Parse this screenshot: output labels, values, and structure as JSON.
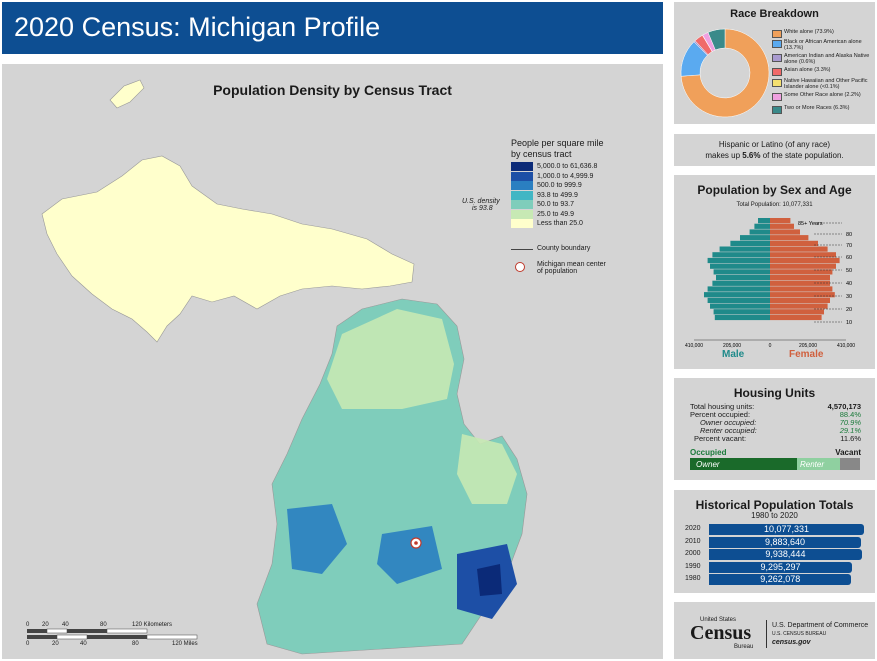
{
  "header": {
    "title": "2020 Census: Michigan Profile"
  },
  "map": {
    "title": "Population Density by Census Tract",
    "legend_title_1": "People per square mile",
    "legend_title_2": "by census tract",
    "classes": [
      {
        "label": "5,000.0 to 61,636.8",
        "color": "#0b2a78"
      },
      {
        "label": "1,000.0 to 4,999.9",
        "color": "#1d4fa6"
      },
      {
        "label": "500.0 to 999.9",
        "color": "#2a7fc1"
      },
      {
        "label": "93.8 to 499.9",
        "color": "#41b6c4"
      },
      {
        "label": "50.0 to 93.7",
        "color": "#7fcdbb"
      },
      {
        "label": "25.0 to 49.9",
        "color": "#c7e9b4"
      },
      {
        "label": "Less than 25.0",
        "color": "#ffffcc"
      }
    ],
    "us_density_line1": "U.S. density",
    "us_density_line2": "is 93.8",
    "county_boundary": "County boundary",
    "mean_center_1": "Michigan mean center",
    "mean_center_2": "of population",
    "scale_km": [
      "0",
      "20",
      "40",
      "80",
      "120 Kilometers"
    ],
    "scale_mi": [
      "0",
      "20",
      "40",
      "80",
      "120 Miles"
    ]
  },
  "race": {
    "title": "Race Breakdown",
    "items": [
      {
        "label": "White alone (73.9%)",
        "value": 73.9,
        "color": "#f0a05a"
      },
      {
        "label": "Black or African American alone (13.7%)",
        "value": 13.7,
        "color": "#5aaaf0"
      },
      {
        "label": "American Indian and Alaska Native alone (0.6%)",
        "value": 0.6,
        "color": "#a99bd0"
      },
      {
        "label": "Asian alone (3.3%)",
        "value": 3.3,
        "color": "#f06a6a"
      },
      {
        "label": "Native Hawaiian and Other Pacific Islander alone (<0.1%)",
        "value": 0.1,
        "color": "#f5e070"
      },
      {
        "label": "Some Other Race alone (2.2%)",
        "value": 2.2,
        "color": "#f0a0e0"
      },
      {
        "label": "Two or More Races (6.3%)",
        "value": 6.3,
        "color": "#3a8a8a"
      }
    ]
  },
  "hispanic": {
    "line1": "Hispanic or Latino (of any race)",
    "line2_pre": "makes up ",
    "line2_bold": "5.6%",
    "line2_post": " of the state population."
  },
  "pyramid": {
    "title": "Population by Sex and Age",
    "total": "Total Population: 10,077,331",
    "age_labels": [
      "85+ Years",
      "80",
      "70",
      "60",
      "50",
      "40",
      "30",
      "20",
      "10"
    ],
    "x_ticks": [
      "410,000",
      "205,000",
      "0",
      "205,000",
      "410,000"
    ],
    "male_label": "Male",
    "female_label": "Female",
    "male_color": "#1f8a8a",
    "female_color": "#d0603e",
    "male": [
      0.1,
      0.13,
      0.17,
      0.25,
      0.33,
      0.42,
      0.48,
      0.52,
      0.5,
      0.47,
      0.45,
      0.48,
      0.52,
      0.55,
      0.52,
      0.5,
      0.47,
      0.46
    ],
    "female": [
      0.17,
      0.2,
      0.25,
      0.32,
      0.4,
      0.48,
      0.55,
      0.58,
      0.55,
      0.52,
      0.5,
      0.5,
      0.52,
      0.54,
      0.5,
      0.48,
      0.45,
      0.43
    ]
  },
  "housing": {
    "title": "Housing Units",
    "rows": [
      {
        "label": "Total housing units:",
        "value": "4,570,173"
      },
      {
        "label": "Percent occupied:",
        "value": "88.4%"
      },
      {
        "label": "Owner occupied:",
        "value": "70.9%"
      },
      {
        "label": "Renter occupied:",
        "value": "29.1%"
      },
      {
        "label": "Percent vacant:",
        "value": "11.6%"
      }
    ],
    "occupied_label": "Occupied",
    "vacant_label": "Vacant",
    "owner_label": "Owner",
    "renter_label": "Renter",
    "occupied_pct": 88.4,
    "owner_pct": 70.9
  },
  "historical": {
    "title": "Historical Population Totals",
    "subtitle": "1980 to 2020",
    "rows": [
      {
        "year": "2020",
        "value": "10,077,331",
        "n": 10077331
      },
      {
        "year": "2010",
        "value": "9,883,640",
        "n": 9883640
      },
      {
        "year": "2000",
        "value": "9,938,444",
        "n": 9938444
      },
      {
        "year": "1990",
        "value": "9,295,297",
        "n": 9295297
      },
      {
        "year": "1980",
        "value": "9,262,078",
        "n": 9262078
      }
    ]
  },
  "footer": {
    "logo_top": "United States",
    "logo_main": "Census",
    "logo_sub": "Bureau",
    "dept": "U.S. Department of Commerce",
    "bureau": "U.S. CENSUS BUREAU",
    "site": "census.gov"
  }
}
